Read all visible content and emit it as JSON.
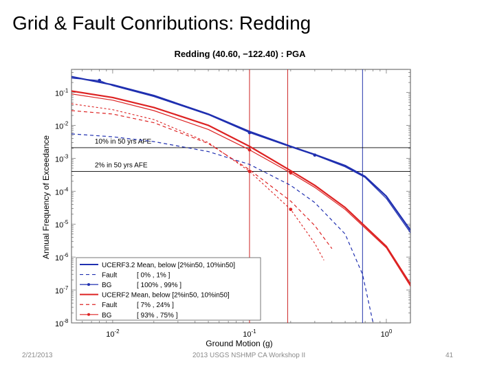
{
  "slide": {
    "title": "Grid & Fault Conributions: Redding"
  },
  "footer": {
    "date": "2/21/2013",
    "center": "2013 USGS NSHMP CA Workshop II",
    "page": "41"
  },
  "chart_data": {
    "type": "line",
    "title": "Redding (40.60, −122.40) : PGA",
    "xlabel": "Ground Motion (g)",
    "ylabel": "Annual Frequency of Exceedance",
    "x_scale": "log",
    "y_scale": "log",
    "xlim": [
      0.005,
      1.5
    ],
    "ylim": [
      1e-08,
      0.5
    ],
    "x_ticks": [
      {
        "value": 0.01,
        "base": "10",
        "exp": "-2"
      },
      {
        "value": 0.1,
        "base": "10",
        "exp": "-1"
      },
      {
        "value": 1,
        "base": "10",
        "exp": "0"
      }
    ],
    "y_ticks": [
      {
        "value": 0.1,
        "base": "10",
        "exp": "-1"
      },
      {
        "value": 0.01,
        "base": "10",
        "exp": "-2"
      },
      {
        "value": 0.001,
        "base": "10",
        "exp": "-3"
      },
      {
        "value": 0.0001,
        "base": "10",
        "exp": "-4"
      },
      {
        "value": 1e-05,
        "base": "10",
        "exp": "-5"
      },
      {
        "value": 1e-06,
        "base": "10",
        "exp": "-6"
      },
      {
        "value": 1e-07,
        "base": "10",
        "exp": "-7"
      },
      {
        "value": 1e-08,
        "base": "10",
        "exp": "-8"
      }
    ],
    "reference_lines": {
      "horizontal": [
        {
          "y": 0.0021,
          "label": "10% in 50 yrs AFE",
          "label_x": 0.0074,
          "color": "#000000"
        },
        {
          "y": 0.0004,
          "label": "2% in 50 yrs AFE",
          "label_x": 0.0074,
          "color": "#000000"
        }
      ],
      "vertical": [
        {
          "x": 0.1,
          "color": "#cc2222"
        },
        {
          "x": 0.19,
          "color": "#cc2222"
        },
        {
          "x": 0.67,
          "color": "#2233aa"
        }
      ]
    },
    "series": [
      {
        "name": "UCERF3.2 Mean, below [2%in50, 10%in50]",
        "color": "#1f2fb0",
        "dash": "solid",
        "width": 2.2,
        "markers": false,
        "points": [
          [
            0.005,
            0.3
          ],
          [
            0.01,
            0.17
          ],
          [
            0.02,
            0.08
          ],
          [
            0.05,
            0.022
          ],
          [
            0.1,
            0.0065
          ],
          [
            0.2,
            0.0023
          ],
          [
            0.3,
            0.0013
          ],
          [
            0.5,
            0.0006
          ],
          [
            0.7,
            0.00028
          ],
          [
            1.0,
            7e-05
          ],
          [
            1.5,
            6.5e-06
          ]
        ]
      },
      {
        "name": "Fault",
        "legend_note": "[ 0% , 1% ]",
        "color": "#1f2fb0",
        "dash": "5,4",
        "width": 1.2,
        "markers": false,
        "points": [
          [
            0.005,
            0.0055
          ],
          [
            0.01,
            0.0045
          ],
          [
            0.02,
            0.0032
          ],
          [
            0.05,
            0.0016
          ],
          [
            0.1,
            0.00065
          ],
          [
            0.2,
            0.00015
          ],
          [
            0.3,
            4.5e-05
          ],
          [
            0.5,
            5e-06
          ],
          [
            0.67,
            3e-07
          ],
          [
            0.8,
            1e-08
          ]
        ]
      },
      {
        "name": "BG",
        "legend_note": "[ 100% , 99% ]",
        "color": "#1f2fb0",
        "dash": "solid",
        "width": 1.2,
        "markers": true,
        "points": [
          [
            0.005,
            0.27
          ],
          [
            0.008,
            0.23
          ],
          [
            0.01,
            0.16
          ],
          [
            0.02,
            0.075
          ],
          [
            0.05,
            0.021
          ],
          [
            0.1,
            0.006
          ],
          [
            0.2,
            0.0022
          ],
          [
            0.3,
            0.00125
          ],
          [
            0.5,
            0.00055
          ],
          [
            0.7,
            0.00026
          ],
          [
            1.0,
            6e-05
          ],
          [
            1.5,
            5.5e-06
          ]
        ],
        "marker_points": [
          [
            0.008,
            0.23
          ],
          [
            0.1,
            0.006
          ],
          [
            0.3,
            0.00125
          ]
        ]
      },
      {
        "name": "UCERF2 Mean, below [2%in50, 10%in50]",
        "color": "#dd2222",
        "dash": "solid",
        "width": 2.2,
        "markers": false,
        "points": [
          [
            0.005,
            0.11
          ],
          [
            0.01,
            0.07
          ],
          [
            0.02,
            0.035
          ],
          [
            0.05,
            0.01
          ],
          [
            0.1,
            0.0023
          ],
          [
            0.2,
            0.00042
          ],
          [
            0.3,
            0.00015
          ],
          [
            0.5,
            3.2e-05
          ],
          [
            1.0,
            2.1e-06
          ],
          [
            1.5,
            1.5e-07
          ]
        ]
      },
      {
        "name": "Fault",
        "legend_note": "[ 7% , 24% ]",
        "color": "#dd2222",
        "dash": "5,4",
        "width": 1.2,
        "markers": false,
        "points": [
          [
            0.005,
            0.028
          ],
          [
            0.01,
            0.022
          ],
          [
            0.02,
            0.012
          ],
          [
            0.05,
            0.0028
          ],
          [
            0.1,
            0.00045
          ],
          [
            0.2,
            5e-05
          ],
          [
            0.3,
            9e-06
          ],
          [
            0.4,
            1.8e-06
          ]
        ]
      },
      {
        "name": "BG",
        "legend_note": "[ 93% , 75% ]",
        "color": "#dd2222",
        "dash": "solid",
        "width": 1.2,
        "markers": true,
        "points": [
          [
            0.005,
            0.09
          ],
          [
            0.01,
            0.058
          ],
          [
            0.02,
            0.028
          ],
          [
            0.05,
            0.0075
          ],
          [
            0.1,
            0.0018
          ],
          [
            0.2,
            0.00036
          ],
          [
            0.3,
            0.00013
          ],
          [
            0.5,
            2.8e-05
          ],
          [
            1.0,
            1.9e-06
          ],
          [
            1.5,
            1.3e-07
          ]
        ],
        "marker_points": [
          [
            0.1,
            0.0018
          ],
          [
            0.2,
            0.00036
          ]
        ]
      },
      {
        "name": "",
        "color": "#dd2222",
        "dash": "3,3",
        "width": 1.1,
        "markers": true,
        "points": [
          [
            0.005,
            0.045
          ],
          [
            0.01,
            0.03
          ],
          [
            0.02,
            0.015
          ],
          [
            0.05,
            0.003
          ],
          [
            0.1,
            0.0004
          ],
          [
            0.2,
            2.8e-05
          ],
          [
            0.3,
            2.6e-06
          ],
          [
            0.35,
            8e-07
          ]
        ],
        "marker_points": [
          [
            0.1,
            0.0004
          ],
          [
            0.2,
            2.8e-05
          ]
        ]
      }
    ],
    "grid": false,
    "legend_position": "bottom-left"
  }
}
